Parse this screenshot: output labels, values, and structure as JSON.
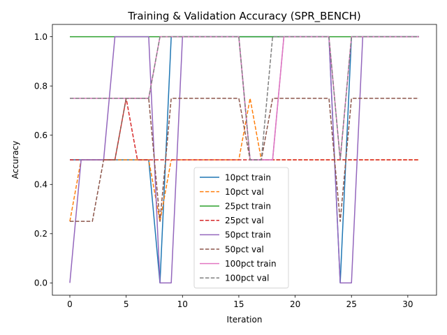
{
  "chart_data": {
    "type": "line",
    "title": "Training & Validation Accuracy (SPR_BENCH)",
    "xlabel": "Iteration",
    "ylabel": "Accuracy",
    "xlim": [
      -1.55,
      32.55
    ],
    "ylim": [
      -0.05,
      1.05
    ],
    "xticks": [
      0,
      5,
      10,
      15,
      20,
      25,
      30
    ],
    "yticks": [
      0.0,
      0.2,
      0.4,
      0.6,
      0.8,
      1.0
    ],
    "grid": false,
    "legend_position": "lower-center",
    "x": [
      0,
      1,
      2,
      3,
      4,
      5,
      6,
      7,
      8,
      9,
      10,
      11,
      12,
      13,
      14,
      15,
      16,
      17,
      18,
      19,
      20,
      21,
      22,
      23,
      24,
      25,
      26,
      27,
      28,
      29,
      30,
      31
    ],
    "series": [
      {
        "name": "10pct train",
        "color": "#1f77b4",
        "dash": "solid",
        "values": [
          0.5,
          0.5,
          0.5,
          0.5,
          0.5,
          0.5,
          0.5,
          0.5,
          0,
          1,
          1,
          1,
          1,
          1,
          1,
          1,
          1,
          1,
          1,
          1,
          1,
          1,
          1,
          1,
          0,
          1,
          1,
          1,
          1,
          1,
          1,
          1
        ]
      },
      {
        "name": "10pct val",
        "color": "#ff7f0e",
        "dash": "dashed",
        "values": [
          0.25,
          0.5,
          0.5,
          0.5,
          0.5,
          0.5,
          0.5,
          0.5,
          0.25,
          0.5,
          0.5,
          0.5,
          0.5,
          0.5,
          0.5,
          0.5,
          0.75,
          0.5,
          0.5,
          0.5,
          0.5,
          0.5,
          0.5,
          0.5,
          0.5,
          0.5,
          0.5,
          0.5,
          0.5,
          0.5,
          0.5,
          0.5
        ]
      },
      {
        "name": "25pct train",
        "color": "#2ca02c",
        "dash": "solid",
        "values": [
          1,
          1,
          1,
          1,
          1,
          1,
          1,
          1,
          1,
          1,
          1,
          1,
          1,
          1,
          1,
          1,
          1,
          1,
          1,
          1,
          1,
          1,
          1,
          1,
          1,
          1,
          1,
          1,
          1,
          1,
          1,
          1
        ]
      },
      {
        "name": "25pct val",
        "color": "#d62728",
        "dash": "dashed",
        "values": [
          0.5,
          0.5,
          0.5,
          0.5,
          0.5,
          0.75,
          0.5,
          0.5,
          0.5,
          0.5,
          0.5,
          0.5,
          0.5,
          0.5,
          0.5,
          0.5,
          0.5,
          0.5,
          0.5,
          0.5,
          0.5,
          0.5,
          0.5,
          0.5,
          0.5,
          0.5,
          0.5,
          0.5,
          0.5,
          0.5,
          0.5,
          0.5
        ]
      },
      {
        "name": "50pct train",
        "color": "#9467bd",
        "dash": "solid",
        "values": [
          0,
          0.5,
          0.5,
          0.5,
          1,
          1,
          1,
          1,
          0,
          0,
          1,
          1,
          1,
          1,
          1,
          1,
          0.5,
          0.5,
          0.5,
          1,
          1,
          1,
          1,
          1,
          0,
          0,
          1,
          1,
          1,
          1,
          1,
          1
        ]
      },
      {
        "name": "50pct val",
        "color": "#8c564b",
        "dash": "dashed",
        "values": [
          0.25,
          0.25,
          0.25,
          0.5,
          0.5,
          0.75,
          0.75,
          0.75,
          0.25,
          0.75,
          0.75,
          0.75,
          0.75,
          0.75,
          0.75,
          0.75,
          0.5,
          0.5,
          0.75,
          0.75,
          0.75,
          0.75,
          0.75,
          0.75,
          0.25,
          0.75,
          0.75,
          0.75,
          0.75,
          0.75,
          0.75,
          0.75
        ]
      },
      {
        "name": "100pct train",
        "color": "#e377c2",
        "dash": "solid",
        "values": [
          0.75,
          0.75,
          0.75,
          0.75,
          0.75,
          0.75,
          0.75,
          0.75,
          1,
          1,
          1,
          1,
          1,
          1,
          1,
          1,
          0.5,
          0.5,
          0.5,
          1,
          1,
          1,
          1,
          1,
          0.5,
          1,
          1,
          1,
          1,
          1,
          1,
          1
        ]
      },
      {
        "name": "100pct val",
        "color": "#7f7f7f",
        "dash": "dashed",
        "values": [
          0.75,
          0.75,
          0.75,
          0.75,
          0.75,
          0.75,
          0.75,
          0.75,
          1,
          1,
          1,
          1,
          1,
          1,
          1,
          1,
          0.5,
          0.5,
          1,
          1,
          1,
          1,
          1,
          1,
          0.5,
          1,
          1,
          1,
          1,
          1,
          1,
          1
        ]
      }
    ]
  }
}
